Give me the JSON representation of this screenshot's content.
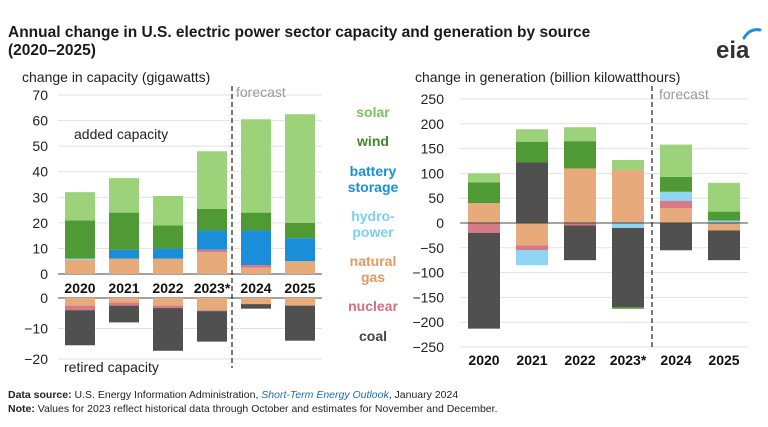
{
  "title": "Annual change in U.S. electric power sector capacity and generation by source (2020–2025)",
  "logo_text": "eia",
  "colors": {
    "solar": "#9bd27a",
    "wind": "#4f9a35",
    "battery storage": "#1a8ed8",
    "hydropower": "#8fd6f5",
    "natural gas": "#e7aa7a",
    "nuclear": "#d67a86",
    "coal": "#505050",
    "legend_solar": "#7cc25a",
    "legend_wind": "#3f8a2a",
    "legend_battery": "#1a8ed8",
    "legend_hydro": "#7cd0f2",
    "legend_gas": "#e09a62",
    "legend_nuclear": "#d0707e",
    "legend_coal": "#444444"
  },
  "legend": [
    {
      "key": "solar",
      "lines": [
        "solar"
      ],
      "color_key": "legend_solar"
    },
    {
      "key": "wind",
      "lines": [
        "wind"
      ],
      "color_key": "legend_wind"
    },
    {
      "key": "battery storage",
      "lines": [
        "battery",
        "storage"
      ],
      "color_key": "legend_battery"
    },
    {
      "key": "hydropower",
      "lines": [
        "hydro-",
        "power"
      ],
      "color_key": "legend_hydro"
    },
    {
      "key": "natural gas",
      "lines": [
        "natural",
        "gas"
      ],
      "color_key": "legend_gas"
    },
    {
      "key": "nuclear",
      "lines": [
        "nuclear"
      ],
      "color_key": "legend_nuclear"
    },
    {
      "key": "coal",
      "lines": [
        "coal"
      ],
      "color_key": "legend_coal"
    }
  ],
  "chart_data": [
    {
      "type": "bar",
      "stacked": true,
      "title": "change in capacity (gigawatts)",
      "categories": [
        "2020",
        "2021",
        "2022",
        "2023*",
        "2024",
        "2025"
      ],
      "forecast_label": "forecast",
      "forecast_from": "2024",
      "panels": [
        {
          "name": "added capacity",
          "label": "added capacity",
          "ylim": [
            0,
            70
          ],
          "ticks": [
            0,
            10,
            20,
            30,
            40,
            50,
            60,
            70
          ],
          "series": [
            {
              "name": "natural gas",
              "values": [
                5.5,
                6,
                6,
                8.5,
                2.5,
                5
              ]
            },
            {
              "name": "nuclear",
              "values": [
                0,
                0,
                0,
                1,
                1,
                0
              ]
            },
            {
              "name": "hydropower",
              "values": [
                0.5,
                0,
                0,
                0,
                0,
                0
              ]
            },
            {
              "name": "battery storage",
              "values": [
                0,
                3.5,
                4,
                7.5,
                13.5,
                9
              ]
            },
            {
              "name": "wind",
              "values": [
                15,
                14.5,
                9,
                8.5,
                7,
                6
              ]
            },
            {
              "name": "solar",
              "values": [
                11,
                13.5,
                11.5,
                22.5,
                36.5,
                42.5
              ]
            }
          ]
        },
        {
          "name": "retired capacity",
          "label": "retired capacity",
          "ylim": [
            -20,
            0
          ],
          "ticks": [
            -20,
            -10,
            0
          ],
          "series": [
            {
              "name": "natural gas",
              "values": [
                -2.5,
                -1.5,
                -2.5,
                -4,
                -2,
                -2.5
              ]
            },
            {
              "name": "nuclear",
              "values": [
                -1.5,
                -1,
                -0.8,
                -0.3,
                0,
                0
              ]
            },
            {
              "name": "coal",
              "values": [
                -11.5,
                -5.5,
                -14,
                -10,
                -1.5,
                -11.5
              ]
            }
          ]
        }
      ]
    },
    {
      "type": "bar",
      "stacked": true,
      "title": "change in generation (billion kilowatthours)",
      "categories": [
        "2020",
        "2021",
        "2022",
        "2023*",
        "2024",
        "2025"
      ],
      "forecast_label": "forecast",
      "forecast_from": "2024",
      "ylim": [
        -250,
        250
      ],
      "ticks": [
        -250,
        -200,
        -150,
        -100,
        -50,
        0,
        50,
        100,
        150,
        200,
        250
      ],
      "series": [
        {
          "name": "natural gas",
          "values": [
            40,
            -45,
            110,
            107,
            30,
            -15
          ]
        },
        {
          "name": "nuclear",
          "values": [
            -20,
            -10,
            -5,
            0,
            15,
            0
          ]
        },
        {
          "name": "hydropower",
          "values": [
            0,
            -30,
            0,
            -10,
            18,
            5
          ]
        },
        {
          "name": "coal",
          "values": [
            -193,
            122,
            -70,
            -160,
            -55,
            -60
          ]
        },
        {
          "name": "wind",
          "values": [
            42,
            42,
            55,
            -3,
            30,
            18
          ]
        },
        {
          "name": "solar",
          "values": [
            18,
            25,
            28,
            20,
            65,
            58
          ]
        }
      ]
    }
  ],
  "footnotes": {
    "source_label": "Data source:",
    "source_pre": " U.S. Energy Information Administration, ",
    "source_title": "Short-Term Energy Outlook",
    "source_post": ", January 2024",
    "note_label": "Note:",
    "note_text": " Values for 2023 reflect historical data through October and estimates for November and December."
  }
}
